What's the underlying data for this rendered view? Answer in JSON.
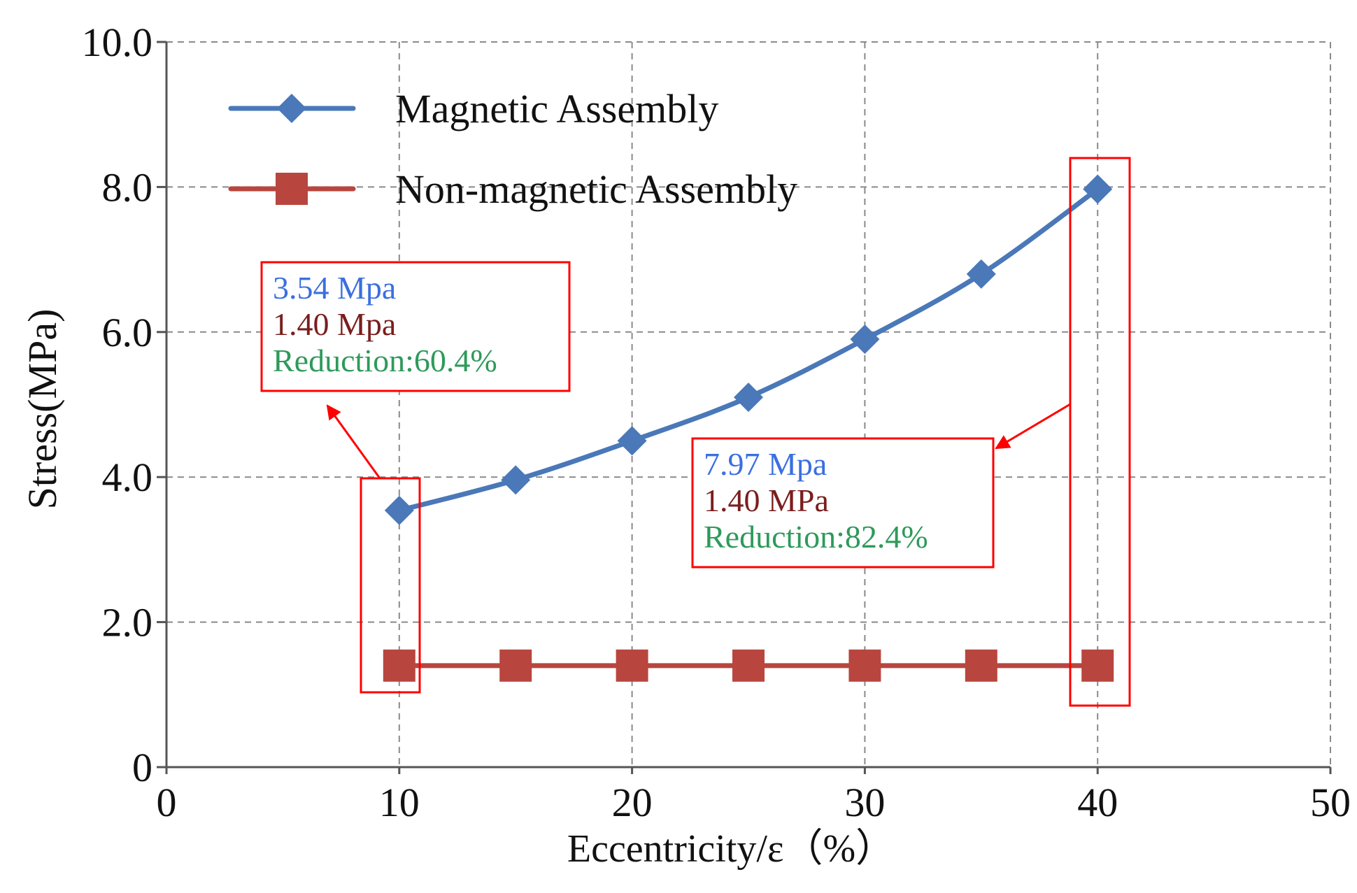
{
  "chart_data": {
    "type": "line",
    "title": "",
    "xlabel": "Eccentricity/ε（%）",
    "ylabel": "Stress(MPa)",
    "xlim": [
      0,
      50
    ],
    "ylim": [
      0,
      10
    ],
    "x_ticks": [
      0,
      10,
      20,
      30,
      40,
      50
    ],
    "x_tick_labels": [
      "0",
      "10",
      "20",
      "30",
      "40",
      "50"
    ],
    "y_ticks": [
      0,
      2,
      4,
      6,
      8,
      10
    ],
    "y_tick_labels": [
      "0",
      "2.0",
      "4.0",
      "6.0",
      "8.0",
      "10.0"
    ],
    "grid": true,
    "legend_position": "top-left",
    "series": [
      {
        "name": "Magnetic Assembly",
        "color": "#4a78b8",
        "marker": "diamond",
        "x": [
          10,
          15,
          20,
          25,
          30,
          35,
          40
        ],
        "values": [
          3.54,
          3.96,
          4.5,
          5.1,
          5.9,
          6.8,
          7.97
        ]
      },
      {
        "name": "Non-magnetic Assembly",
        "color": "#b8463e",
        "marker": "square",
        "x": [
          10,
          15,
          20,
          25,
          30,
          35,
          40
        ],
        "values": [
          1.4,
          1.4,
          1.4,
          1.4,
          1.4,
          1.4,
          1.4
        ]
      }
    ],
    "annotations": [
      {
        "target_x": 10,
        "lines": [
          {
            "text": "3.54 Mpa",
            "color": "#3b6fe0"
          },
          {
            "text": "1.40 Mpa",
            "color": "#7a1e1e"
          },
          {
            "text": "Reduction:60.4%",
            "color": "#2e9a5a"
          }
        ]
      },
      {
        "target_x": 40,
        "lines": [
          {
            "text": "7.97 Mpa",
            "color": "#3b6fe0"
          },
          {
            "text": "1.40 MPa",
            "color": "#7a1e1e"
          },
          {
            "text": "Reduction:82.4%",
            "color": "#2e9a5a"
          }
        ]
      }
    ],
    "highlight_color": "#ff0000"
  }
}
